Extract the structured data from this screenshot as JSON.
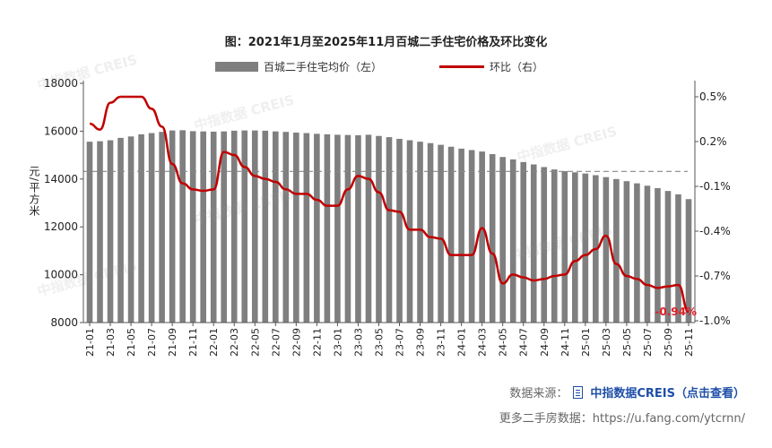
{
  "chart_data": {
    "type": "bar+line",
    "title": "图：2021年1月至2025年11月百城二手住宅价格及环比变化",
    "ylabel_left": "元/平方米",
    "ylim_left": [
      8000,
      18000
    ],
    "yticks_left": [
      "18000",
      "16000",
      "14000",
      "12000",
      "10000",
      "8000"
    ],
    "ylim_right": [
      -1.0,
      0.6
    ],
    "yticks_right": [
      "0.5%",
      "0.2%",
      "-0.1%",
      "-0.4%",
      "-0.7%",
      "-1.0%"
    ],
    "zero_line": "dashed",
    "legend_position": "top",
    "categories": [
      "21-01",
      "21-02",
      "21-03",
      "21-04",
      "21-05",
      "21-06",
      "21-07",
      "21-08",
      "21-09",
      "21-10",
      "21-11",
      "21-12",
      "22-01",
      "22-02",
      "22-03",
      "22-04",
      "22-05",
      "22-06",
      "22-07",
      "22-08",
      "22-09",
      "22-10",
      "22-11",
      "22-12",
      "23-01",
      "23-02",
      "23-03",
      "23-04",
      "23-05",
      "23-06",
      "23-07",
      "23-08",
      "23-09",
      "23-10",
      "23-11",
      "23-12",
      "24-01",
      "24-02",
      "24-03",
      "24-04",
      "24-05",
      "24-06",
      "24-07",
      "24-08",
      "24-09",
      "24-10",
      "24-11",
      "24-12",
      "25-01",
      "25-02",
      "25-03",
      "25-04",
      "25-05",
      "25-06",
      "25-07",
      "25-08",
      "25-09",
      "25-10",
      "25-11"
    ],
    "series": [
      {
        "name": "百城二手住宅均价（左）",
        "type": "bar",
        "axis": "left",
        "color": "#7f7f7f",
        "values": [
          15560,
          15580,
          15620,
          15720,
          15780,
          15870,
          15920,
          15970,
          16030,
          16040,
          16000,
          15990,
          15980,
          15990,
          16020,
          16030,
          16030,
          16020,
          15990,
          15970,
          15940,
          15920,
          15890,
          15870,
          15850,
          15840,
          15830,
          15850,
          15800,
          15750,
          15680,
          15620,
          15560,
          15500,
          15430,
          15350,
          15270,
          15210,
          15150,
          15040,
          14920,
          14820,
          14710,
          14610,
          14500,
          14400,
          14330,
          14280,
          14230,
          14160,
          14080,
          14000,
          13910,
          13820,
          13720,
          13620,
          13500,
          13360,
          13160
        ]
      },
      {
        "name": "环比（右）",
        "type": "line",
        "axis": "right",
        "color": "#c00000",
        "values": [
          0.32,
          0.28,
          0.46,
          0.5,
          0.5,
          0.5,
          0.42,
          0.3,
          0.05,
          -0.08,
          -0.12,
          -0.13,
          -0.12,
          0.13,
          0.11,
          0.03,
          -0.03,
          -0.05,
          -0.07,
          -0.12,
          -0.15,
          -0.15,
          -0.19,
          -0.23,
          -0.23,
          -0.12,
          -0.03,
          -0.05,
          -0.14,
          -0.26,
          -0.27,
          -0.39,
          -0.39,
          -0.44,
          -0.45,
          -0.56,
          -0.56,
          -0.56,
          -0.38,
          -0.55,
          -0.75,
          -0.69,
          -0.71,
          -0.73,
          -0.72,
          -0.7,
          -0.69,
          -0.6,
          -0.56,
          -0.52,
          -0.43,
          -0.62,
          -0.7,
          -0.72,
          -0.76,
          -0.78,
          -0.77,
          -0.76,
          -0.94
        ]
      }
    ],
    "annotation": "-0.94%",
    "annotation_color": "#e0202a"
  },
  "watermark": "中指数据 CREIS",
  "footer": {
    "source_label": "数据来源：",
    "source_icon": "document-icon",
    "source_link": "中指数据CREIS（点击查看）",
    "more_text": "更多二手房数据：https://u.fang.com/ytcrnn/"
  }
}
